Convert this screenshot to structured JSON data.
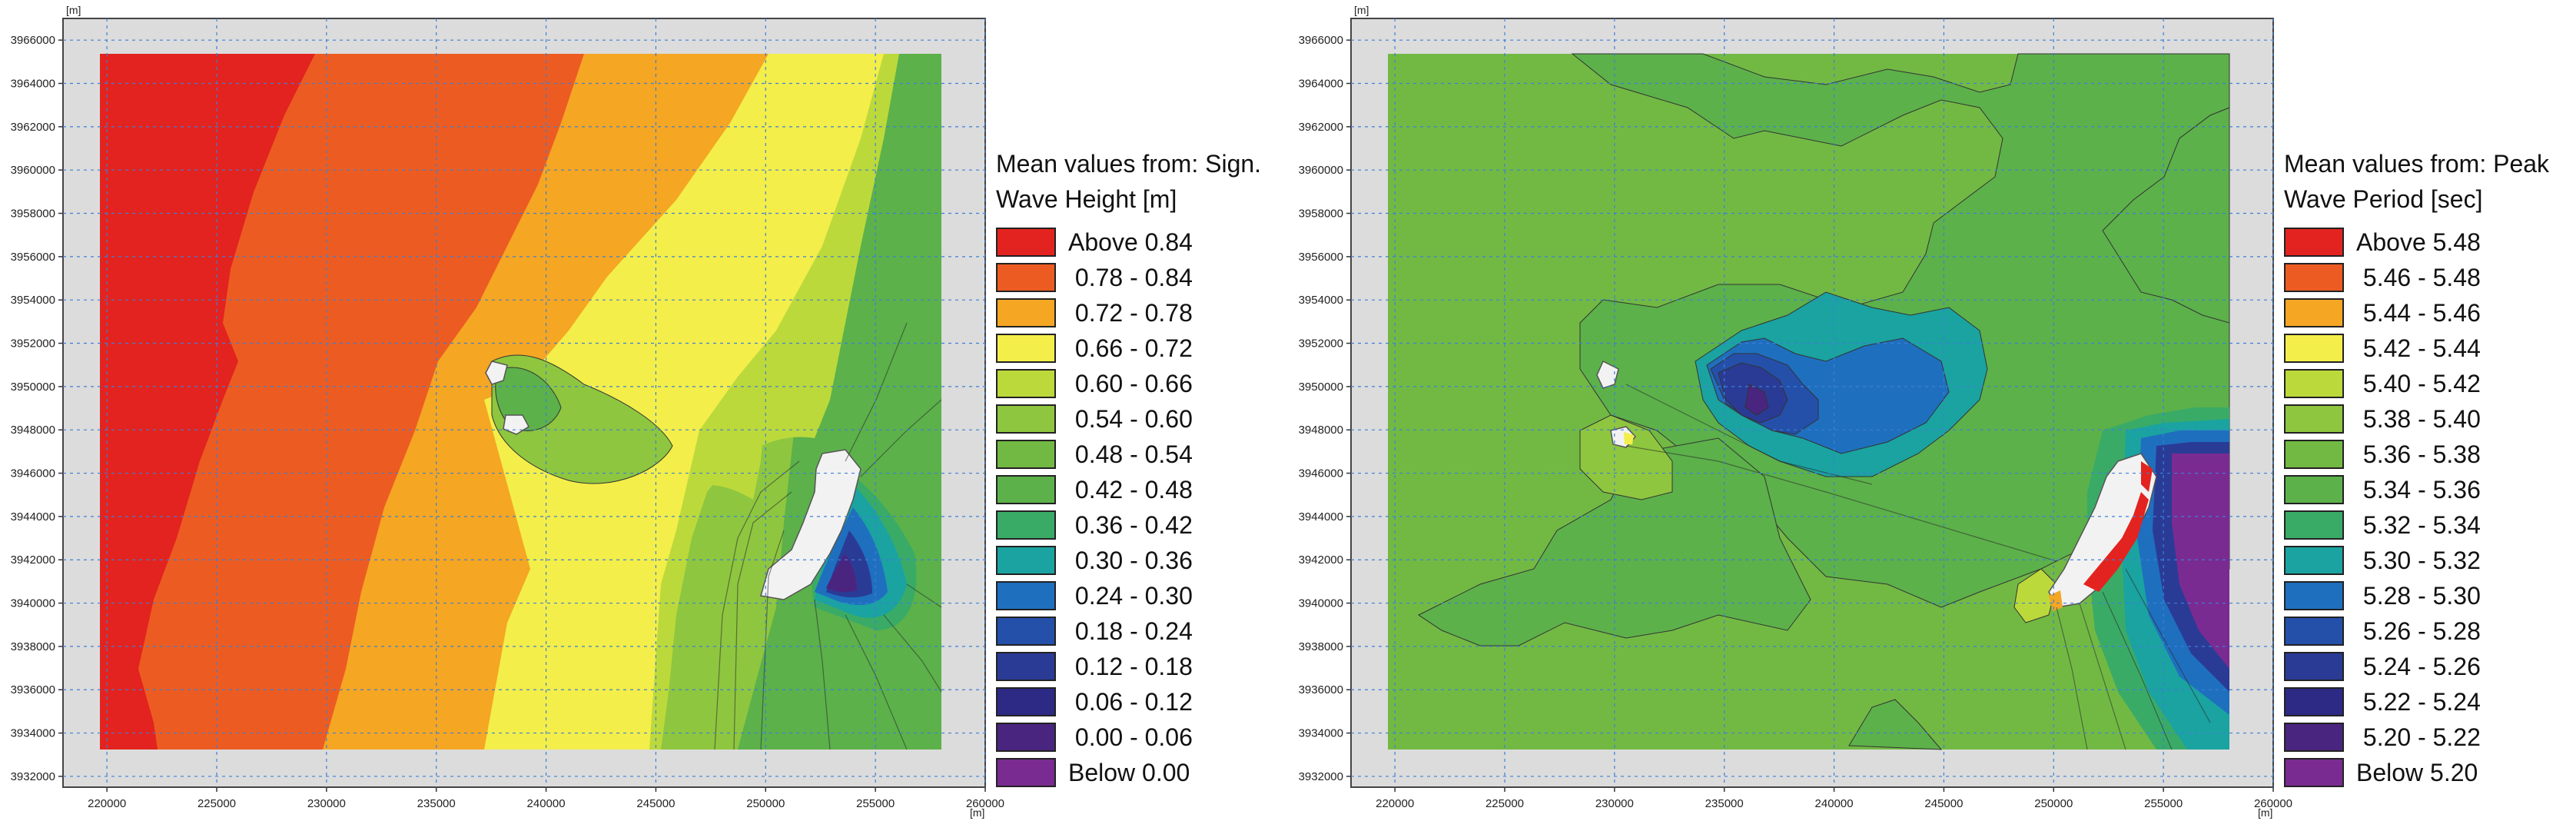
{
  "chart_data": [
    {
      "type": "heatmap",
      "title": "Mean values from: Sign. Wave Height [m]",
      "title_lines": [
        "Mean values from: Sign.",
        "Wave Height [m]"
      ],
      "unit_label_x": "[m]",
      "unit_label_y": "[m]",
      "xlim": [
        218000,
        260000
      ],
      "ylim": [
        3931500,
        3967000
      ],
      "x_ticks": [
        220000,
        225000,
        230000,
        235000,
        240000,
        245000,
        250000,
        255000,
        260000
      ],
      "y_ticks": [
        3932000,
        3934000,
        3936000,
        3938000,
        3940000,
        3942000,
        3944000,
        3946000,
        3948000,
        3950000,
        3952000,
        3954000,
        3956000,
        3958000,
        3960000,
        3962000,
        3964000,
        3966000
      ],
      "grid": true,
      "legend_position": "right",
      "legend": [
        {
          "label": "Above 0.84",
          "color": "#e3231f"
        },
        {
          "label": "0.78 - 0.84",
          "color": "#ec5c22"
        },
        {
          "label": "0.72 - 0.78",
          "color": "#f5a623"
        },
        {
          "label": "0.66 - 0.72",
          "color": "#f3ee4a"
        },
        {
          "label": "0.60 - 0.66",
          "color": "#bcd93b"
        },
        {
          "label": "0.54 - 0.60",
          "color": "#8ec63f"
        },
        {
          "label": "0.48 - 0.54",
          "color": "#72b944"
        },
        {
          "label": "0.42 - 0.48",
          "color": "#5cb14a"
        },
        {
          "label": "0.36 - 0.42",
          "color": "#3aab67"
        },
        {
          "label": "0.30 - 0.36",
          "color": "#1aa3a0"
        },
        {
          "label": "0.24 - 0.30",
          "color": "#1f6fbf"
        },
        {
          "label": "0.18 - 0.24",
          "color": "#2450aa"
        },
        {
          "label": "0.12 - 0.18",
          "color": "#2a3b96"
        },
        {
          "label": "0.06 - 0.12",
          "color": "#2d2a85"
        },
        {
          "label": "0.00 - 0.06",
          "color": "#4a2580"
        },
        {
          "label": "Below 0.00",
          "color": "#7a2b91"
        }
      ]
    },
    {
      "type": "heatmap",
      "title": "Mean values from: Peak Wave Period [sec]",
      "title_lines": [
        "Mean values from: Peak",
        "Wave Period [sec]"
      ],
      "unit_label_x": "[m]",
      "unit_label_y": "[m]",
      "xlim": [
        218000,
        260000
      ],
      "ylim": [
        3931500,
        3967000
      ],
      "x_ticks": [
        220000,
        225000,
        230000,
        235000,
        240000,
        245000,
        250000,
        255000,
        260000
      ],
      "y_ticks": [
        3932000,
        3934000,
        3936000,
        3938000,
        3940000,
        3942000,
        3944000,
        3946000,
        3948000,
        3950000,
        3952000,
        3954000,
        3956000,
        3958000,
        3960000,
        3962000,
        3964000,
        3966000
      ],
      "grid": true,
      "legend_position": "right",
      "legend": [
        {
          "label": "Above 5.48",
          "color": "#e3231f"
        },
        {
          "label": "5.46 - 5.48",
          "color": "#ec5c22"
        },
        {
          "label": "5.44 - 5.46",
          "color": "#f5a623"
        },
        {
          "label": "5.42 - 5.44",
          "color": "#f3ee4a"
        },
        {
          "label": "5.40 - 5.42",
          "color": "#bcd93b"
        },
        {
          "label": "5.38 - 5.40",
          "color": "#8ec63f"
        },
        {
          "label": "5.36 - 5.38",
          "color": "#72b944"
        },
        {
          "label": "5.34 - 5.36",
          "color": "#5cb14a"
        },
        {
          "label": "5.32 - 5.34",
          "color": "#3aab67"
        },
        {
          "label": "5.30 - 5.32",
          "color": "#1aa3a0"
        },
        {
          "label": "5.28 - 5.30",
          "color": "#1f6fbf"
        },
        {
          "label": "5.26 - 5.28",
          "color": "#2450aa"
        },
        {
          "label": "5.24 - 5.26",
          "color": "#2a3b96"
        },
        {
          "label": "5.22 - 5.24",
          "color": "#2d2a85"
        },
        {
          "label": "5.20 - 5.22",
          "color": "#4a2580"
        },
        {
          "label": "Below 5.20",
          "color": "#7a2b91"
        }
      ]
    }
  ]
}
